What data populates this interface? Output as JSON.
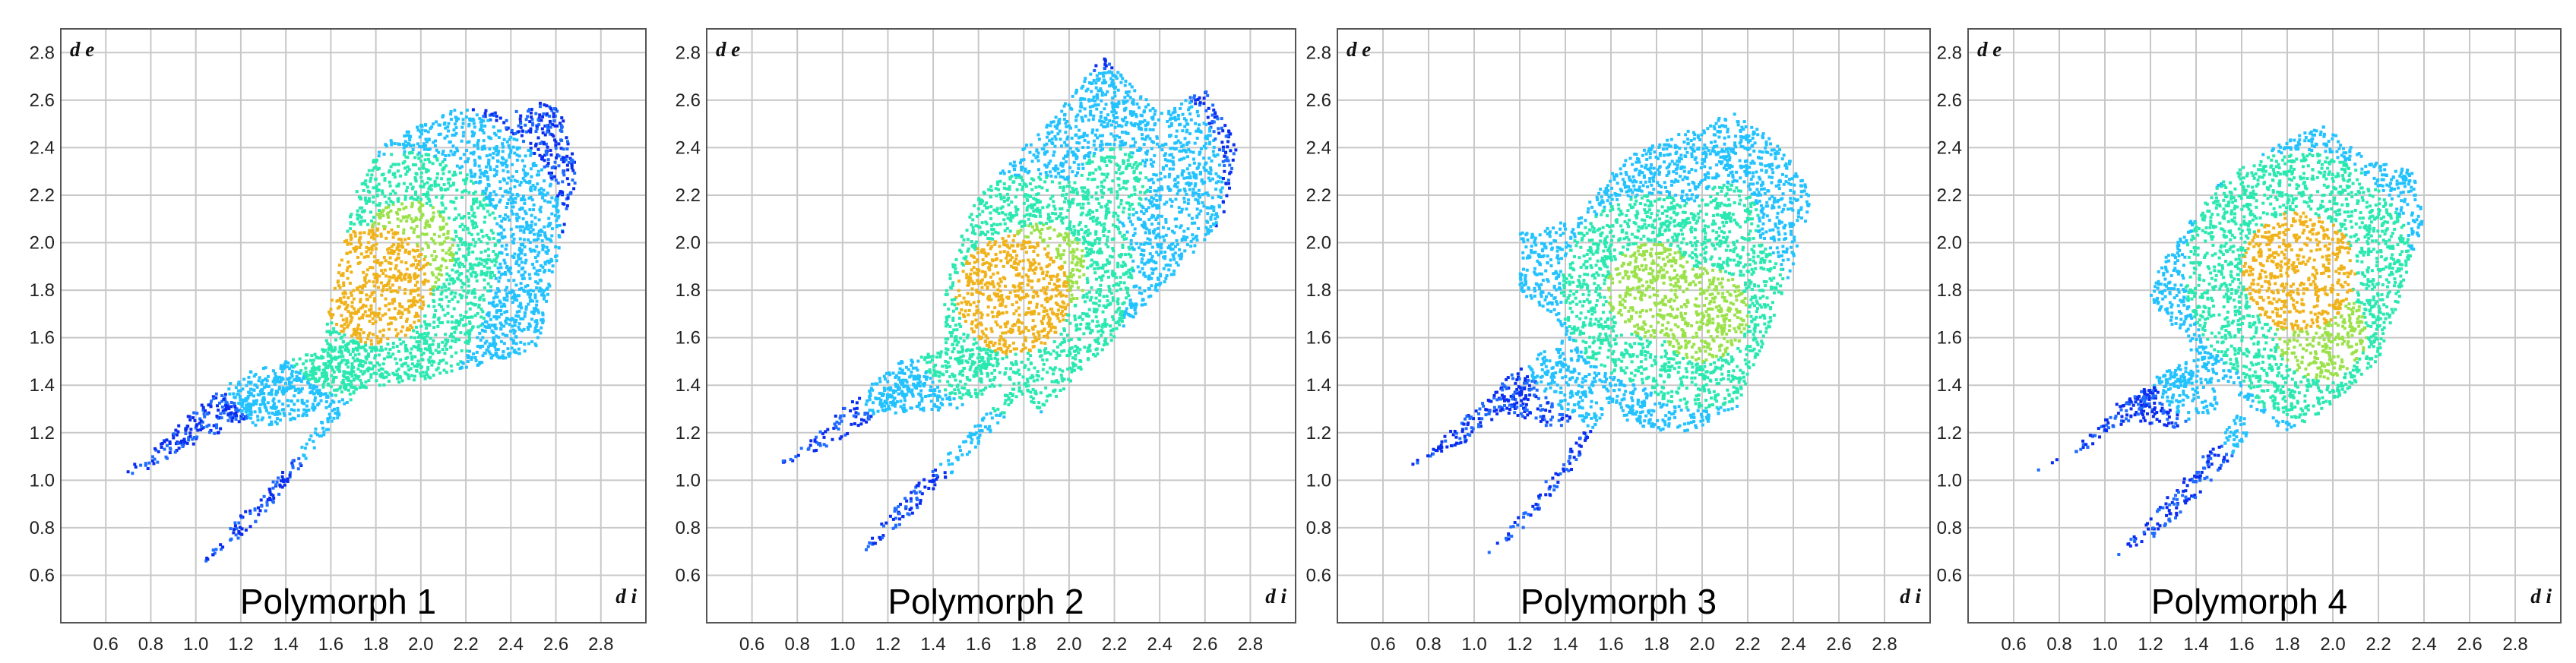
{
  "chart_data": [
    {
      "type": "heatmap",
      "title": "Polymorph 1",
      "xlabel": "d i",
      "ylabel": "d e",
      "xlim": [
        0.4,
        3.0
      ],
      "ylim": [
        0.4,
        2.9
      ],
      "x_ticks": [
        "0.6",
        "0.8",
        "1.0",
        "1.2",
        "1.4",
        "1.6",
        "1.8",
        "2.0",
        "2.2",
        "2.4",
        "2.6",
        "2.8"
      ],
      "y_ticks": [
        "0.6",
        "0.8",
        "1.0",
        "1.2",
        "1.4",
        "1.6",
        "1.8",
        "2.0",
        "2.2",
        "2.4",
        "2.6",
        "2.8"
      ],
      "grid": true,
      "colormap": [
        "#0a2cf0",
        "#1f6cff",
        "#22c2ff",
        "#29e8b0",
        "#9be24a",
        "#f0b21a"
      ],
      "regions": [
        {
          "name": "body",
          "polygon": [
            [
              1.38,
              1.38
            ],
            [
              1.55,
              1.5
            ],
            [
              1.62,
              1.85
            ],
            [
              1.72,
              2.25
            ],
            [
              1.85,
              2.43
            ],
            [
              2.2,
              2.58
            ],
            [
              2.45,
              2.55
            ],
            [
              2.6,
              2.62
            ],
            [
              2.7,
              2.3
            ],
            [
              2.62,
              2.0
            ],
            [
              2.52,
              1.55
            ],
            [
              2.0,
              1.42
            ],
            [
              1.55,
              1.36
            ]
          ]
        },
        {
          "name": "spike-upper",
          "polygon": [
            [
              0.65,
              1.01
            ],
            [
              0.8,
              1.12
            ],
            [
              1.0,
              1.3
            ],
            [
              1.2,
              1.45
            ],
            [
              1.4,
              1.5
            ],
            [
              1.5,
              1.44
            ],
            [
              1.3,
              1.3
            ],
            [
              1.0,
              1.15
            ],
            [
              0.8,
              1.05
            ]
          ]
        },
        {
          "name": "spike-lower",
          "polygon": [
            [
              1.02,
              0.65
            ],
            [
              1.2,
              0.85
            ],
            [
              1.4,
              1.05
            ],
            [
              1.6,
              1.3
            ],
            [
              1.8,
              1.45
            ],
            [
              1.7,
              1.35
            ],
            [
              1.5,
              1.1
            ],
            [
              1.3,
              0.85
            ],
            [
              1.1,
              0.68
            ]
          ]
        },
        {
          "name": "wing",
          "polygon": [
            [
              1.08,
              1.32
            ],
            [
              1.4,
              1.5
            ],
            [
              1.7,
              1.6
            ],
            [
              1.85,
              1.45
            ],
            [
              1.6,
              1.3
            ],
            [
              1.3,
              1.22
            ],
            [
              1.1,
              1.28
            ]
          ]
        }
      ],
      "hotspots": [
        {
          "x": 1.95,
          "y": 1.98,
          "level": 4
        },
        {
          "x": 1.8,
          "y": 1.82,
          "level": 5
        },
        {
          "x": 1.7,
          "y": 1.9,
          "level": 3
        },
        {
          "x": 2.15,
          "y": 2.05,
          "level": 3
        }
      ]
    },
    {
      "type": "heatmap",
      "title": "Polymorph 2",
      "xlabel": "d i",
      "ylabel": "d e",
      "xlim": [
        0.4,
        3.0
      ],
      "ylim": [
        0.4,
        2.9
      ],
      "x_ticks": [
        "0.6",
        "0.8",
        "1.0",
        "1.2",
        "1.4",
        "1.6",
        "1.8",
        "2.0",
        "2.2",
        "2.4",
        "2.6",
        "2.8"
      ],
      "y_ticks": [
        "0.6",
        "0.8",
        "1.0",
        "1.2",
        "1.4",
        "1.6",
        "1.8",
        "2.0",
        "2.2",
        "2.4",
        "2.6",
        "2.8"
      ],
      "grid": true,
      "colormap": [
        "#0a2cf0",
        "#1f6cff",
        "#22c2ff",
        "#29e8b0",
        "#9be24a",
        "#f0b21a"
      ],
      "regions": [
        {
          "name": "body",
          "polygon": [
            [
              1.45,
              1.5
            ],
            [
              1.45,
              1.85
            ],
            [
              1.6,
              2.2
            ],
            [
              1.9,
              2.5
            ],
            [
              2.15,
              2.78
            ],
            [
              2.4,
              2.55
            ],
            [
              2.6,
              2.65
            ],
            [
              2.75,
              2.4
            ],
            [
              2.68,
              2.1
            ],
            [
              2.45,
              1.85
            ],
            [
              2.1,
              1.5
            ],
            [
              1.88,
              1.28
            ],
            [
              1.7,
              1.45
            ]
          ]
        },
        {
          "name": "spike-upper",
          "polygon": [
            [
              0.65,
              1.03
            ],
            [
              0.8,
              1.12
            ],
            [
              1.0,
              1.3
            ],
            [
              1.25,
              1.5
            ],
            [
              1.45,
              1.55
            ],
            [
              1.4,
              1.42
            ],
            [
              1.2,
              1.3
            ],
            [
              0.95,
              1.15
            ]
          ]
        },
        {
          "name": "spike-lower",
          "polygon": [
            [
              1.05,
              0.67
            ],
            [
              1.2,
              0.85
            ],
            [
              1.45,
              1.1
            ],
            [
              1.7,
              1.35
            ],
            [
              1.85,
              1.45
            ],
            [
              1.75,
              1.3
            ],
            [
              1.5,
              1.05
            ],
            [
              1.25,
              0.8
            ]
          ]
        },
        {
          "name": "wing",
          "polygon": [
            [
              1.12,
              1.35
            ],
            [
              1.4,
              1.48
            ],
            [
              1.6,
              1.55
            ],
            [
              1.7,
              1.4
            ],
            [
              1.5,
              1.3
            ],
            [
              1.2,
              1.28
            ]
          ]
        }
      ],
      "hotspots": [
        {
          "x": 1.88,
          "y": 1.88,
          "level": 4
        },
        {
          "x": 1.75,
          "y": 1.78,
          "level": 5
        },
        {
          "x": 2.2,
          "y": 2.25,
          "level": 3
        },
        {
          "x": 2.0,
          "y": 1.65,
          "level": 3
        }
      ]
    },
    {
      "type": "heatmap",
      "title": "Polymorph 3",
      "xlabel": "d i",
      "ylabel": "d e",
      "xlim": [
        0.4,
        3.0
      ],
      "ylim": [
        0.4,
        2.9
      ],
      "x_ticks": [
        "0.6",
        "0.8",
        "1.0",
        "1.2",
        "1.4",
        "1.6",
        "1.8",
        "2.0",
        "2.2",
        "2.4",
        "2.6",
        "2.8"
      ],
      "y_ticks": [
        "0.6",
        "0.8",
        "1.0",
        "1.2",
        "1.4",
        "1.6",
        "1.8",
        "2.0",
        "2.2",
        "2.4",
        "2.6",
        "2.8"
      ],
      "grid": true,
      "colormap": [
        "#0a2cf0",
        "#1f6cff",
        "#22c2ff",
        "#29e8b0",
        "#9be24a",
        "#f0b21a"
      ],
      "regions": [
        {
          "name": "body",
          "polygon": [
            [
              1.2,
              1.78
            ],
            [
              1.2,
              2.05
            ],
            [
              1.45,
              2.1
            ],
            [
              1.65,
              2.35
            ],
            [
              1.95,
              2.48
            ],
            [
              2.15,
              2.55
            ],
            [
              2.35,
              2.4
            ],
            [
              2.48,
              2.2
            ],
            [
              2.42,
              1.95
            ],
            [
              2.3,
              1.65
            ],
            [
              2.15,
              1.3
            ],
            [
              1.95,
              1.2
            ],
            [
              1.7,
              1.22
            ],
            [
              1.5,
              1.45
            ],
            [
              1.35,
              1.7
            ]
          ]
        },
        {
          "name": "spike-upper",
          "polygon": [
            [
              0.65,
              1.03
            ],
            [
              0.8,
              1.12
            ],
            [
              1.0,
              1.3
            ],
            [
              1.2,
              1.48
            ],
            [
              1.4,
              1.6
            ],
            [
              1.45,
              1.5
            ],
            [
              1.2,
              1.35
            ],
            [
              0.95,
              1.15
            ]
          ]
        },
        {
          "name": "spike-lower",
          "polygon": [
            [
              1.05,
              0.68
            ],
            [
              1.2,
              0.85
            ],
            [
              1.4,
              1.1
            ],
            [
              1.55,
              1.3
            ],
            [
              1.65,
              1.45
            ],
            [
              1.58,
              1.3
            ],
            [
              1.4,
              1.0
            ],
            [
              1.2,
              0.78
            ]
          ]
        },
        {
          "name": "wing",
          "polygon": [
            [
              1.1,
              1.35
            ],
            [
              1.3,
              1.45
            ],
            [
              1.5,
              1.55
            ],
            [
              1.55,
              1.25
            ],
            [
              1.35,
              1.22
            ],
            [
              1.15,
              1.28
            ]
          ]
        }
      ],
      "hotspots": [
        {
          "x": 1.6,
          "y": 1.98,
          "level": 3
        },
        {
          "x": 1.78,
          "y": 1.8,
          "level": 4
        },
        {
          "x": 2.0,
          "y": 1.7,
          "level": 4
        },
        {
          "x": 2.1,
          "y": 2.1,
          "level": 3
        }
      ]
    },
    {
      "type": "heatmap",
      "title": "Polymorph 4",
      "xlabel": "d i",
      "ylabel": "d e",
      "xlim": [
        0.4,
        3.0
      ],
      "ylim": [
        0.4,
        2.9
      ],
      "x_ticks": [
        "0.6",
        "0.8",
        "1.0",
        "1.2",
        "1.4",
        "1.6",
        "1.8",
        "2.0",
        "2.2",
        "2.4",
        "2.6",
        "2.8"
      ],
      "y_ticks": [
        "0.6",
        "0.8",
        "1.0",
        "1.2",
        "1.4",
        "1.6",
        "1.8",
        "2.0",
        "2.2",
        "2.4",
        "2.6",
        "2.8"
      ],
      "grid": true,
      "colormap": [
        "#0a2cf0",
        "#1f6cff",
        "#22c2ff",
        "#29e8b0",
        "#9be24a",
        "#f0b21a"
      ],
      "regions": [
        {
          "name": "body",
          "polygon": [
            [
              1.18,
              1.78
            ],
            [
              1.3,
              2.0
            ],
            [
              1.5,
              2.25
            ],
            [
              1.7,
              2.38
            ],
            [
              1.95,
              2.5
            ],
            [
              2.15,
              2.35
            ],
            [
              2.35,
              2.3
            ],
            [
              2.4,
              2.1
            ],
            [
              2.32,
              1.85
            ],
            [
              2.2,
              1.5
            ],
            [
              1.95,
              1.28
            ],
            [
              1.8,
              1.2
            ],
            [
              1.65,
              1.3
            ],
            [
              1.45,
              1.45
            ],
            [
              1.3,
              1.65
            ]
          ]
        },
        {
          "name": "spike-upper",
          "polygon": [
            [
              0.68,
              1.03
            ],
            [
              0.85,
              1.12
            ],
            [
              1.05,
              1.3
            ],
            [
              1.25,
              1.45
            ],
            [
              1.4,
              1.52
            ],
            [
              1.42,
              1.42
            ],
            [
              1.2,
              1.32
            ],
            [
              0.95,
              1.15
            ]
          ]
        },
        {
          "name": "spike-lower",
          "polygon": [
            [
              1.05,
              0.68
            ],
            [
              1.25,
              0.9
            ],
            [
              1.45,
              1.12
            ],
            [
              1.6,
              1.3
            ],
            [
              1.65,
              1.2
            ],
            [
              1.45,
              0.98
            ],
            [
              1.25,
              0.78
            ]
          ]
        },
        {
          "name": "wing",
          "polygon": [
            [
              1.05,
              1.32
            ],
            [
              1.25,
              1.42
            ],
            [
              1.45,
              1.5
            ],
            [
              1.5,
              1.3
            ],
            [
              1.3,
              1.22
            ],
            [
              1.1,
              1.25
            ]
          ]
        }
      ],
      "hotspots": [
        {
          "x": 1.55,
          "y": 1.82,
          "level": 3
        },
        {
          "x": 1.85,
          "y": 1.88,
          "level": 5
        },
        {
          "x": 1.95,
          "y": 1.62,
          "level": 4
        },
        {
          "x": 2.1,
          "y": 2.05,
          "level": 3
        }
      ]
    }
  ]
}
